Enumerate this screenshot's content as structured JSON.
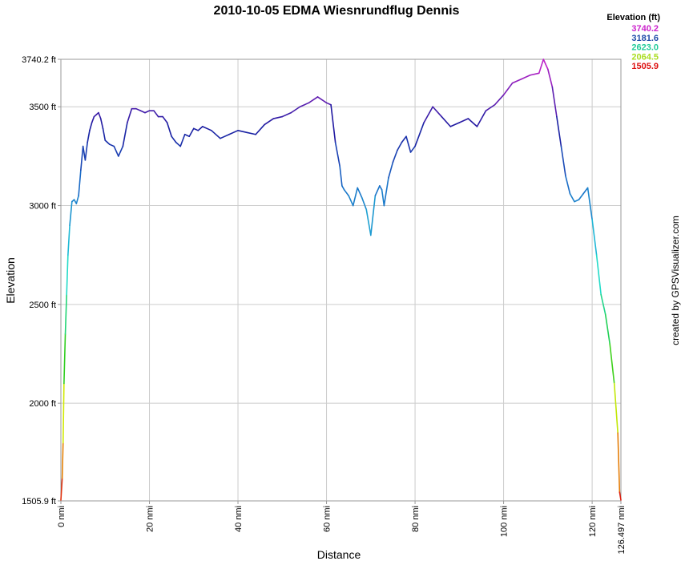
{
  "chart_data": {
    "type": "line",
    "title": "2010-10-05 EDMA Wiesnrundflug Dennis",
    "xlabel": "Distance",
    "ylabel": "Elevation",
    "credit": "created by GPSVisualizer.com",
    "grid": true,
    "xlim": [
      0,
      126.497
    ],
    "ylim": [
      1505.9,
      3740.2
    ],
    "x_ticks": [
      {
        "value": 0,
        "label": "0 nmi"
      },
      {
        "value": 20,
        "label": "20 nmi"
      },
      {
        "value": 40,
        "label": "40 nmi"
      },
      {
        "value": 60,
        "label": "60 nmi"
      },
      {
        "value": 80,
        "label": "80 nmi"
      },
      {
        "value": 100,
        "label": "100 nmi"
      },
      {
        "value": 120,
        "label": "120 nmi"
      },
      {
        "value": 126.497,
        "label": "126.497 nmi"
      }
    ],
    "y_ticks": [
      {
        "value": 1505.9,
        "label": "1505.9 ft"
      },
      {
        "value": 2000,
        "label": "2000 ft"
      },
      {
        "value": 2500,
        "label": "2500 ft"
      },
      {
        "value": 3000,
        "label": "3000 ft"
      },
      {
        "value": 3500,
        "label": "3500 ft"
      },
      {
        "value": 3740.2,
        "label": "3740.2 ft"
      }
    ],
    "legend": {
      "title": "Elevation (ft)",
      "placement": "top-right",
      "entries": [
        {
          "label": "3740.2",
          "color": "#cc22cc"
        },
        {
          "label": "3181.6",
          "color": "#1f4aa8"
        },
        {
          "label": "2623.0",
          "color": "#22cc99"
        },
        {
          "label": "2064.5",
          "color": "#aadd22"
        },
        {
          "label": "1505.9",
          "color": "#dd1111"
        }
      ]
    },
    "color_scale": [
      {
        "value": 1505.9,
        "color": "#dd1111"
      },
      {
        "value": 1900,
        "color": "#eeee00"
      },
      {
        "value": 2250,
        "color": "#22cc22"
      },
      {
        "value": 2700,
        "color": "#22dddd"
      },
      {
        "value": 3100,
        "color": "#1a6ec8"
      },
      {
        "value": 3400,
        "color": "#1a1aa0"
      },
      {
        "value": 3740.2,
        "color": "#cc22cc"
      }
    ],
    "series": [
      {
        "x": [
          0,
          0.3,
          0.5,
          0.7,
          1.0,
          1.3,
          1.6,
          2.0,
          2.5,
          3.0,
          3.5,
          4.0,
          4.5,
          5.0,
          5.5,
          6.0,
          6.5,
          7.0,
          7.5,
          8.0,
          8.5,
          9.0,
          9.5,
          10.0,
          10.5,
          11.0,
          12.0,
          13.0,
          14.0,
          15.0,
          16.0,
          17.0,
          18.0,
          19.0,
          20.0,
          21.0,
          22.0,
          23.0,
          24.0,
          25.0,
          26.0,
          27.0,
          28.0,
          29.0,
          30.0,
          31.0,
          32.0,
          34.0,
          36.0,
          38.0,
          40.0,
          42.0,
          44.0,
          46.0,
          48.0,
          50.0,
          52.0,
          54.0,
          56.0,
          58.0,
          60.0,
          61.0,
          62.0,
          63.0,
          63.5,
          64.0,
          65.0,
          66.0,
          67.0,
          68.0,
          69.0,
          70.0,
          71.0,
          72.0,
          72.5,
          73.0,
          74.0,
          75.0,
          76.0,
          77.0,
          78.0,
          79.0,
          80.0,
          82.0,
          84.0,
          86.0,
          88.0,
          90.0,
          92.0,
          94.0,
          96.0,
          98.0,
          100.0,
          102.0,
          104.0,
          106.0,
          108.0,
          109.0,
          110.0,
          111.0,
          112.0,
          113.0,
          114.0,
          115.0,
          116.0,
          117.0,
          118.0,
          119.0,
          120.0,
          121.0,
          122.0,
          123.0,
          124.0,
          125.0,
          125.8,
          126.2,
          126.497
        ],
        "y": [
          1510,
          1620,
          1800,
          2100,
          2350,
          2550,
          2750,
          2900,
          3020,
          3030,
          3010,
          3050,
          3180,
          3300,
          3230,
          3320,
          3380,
          3420,
          3450,
          3460,
          3470,
          3440,
          3390,
          3330,
          3320,
          3310,
          3300,
          3250,
          3300,
          3420,
          3490,
          3490,
          3480,
          3470,
          3480,
          3480,
          3450,
          3450,
          3420,
          3350,
          3320,
          3300,
          3360,
          3350,
          3390,
          3380,
          3400,
          3380,
          3340,
          3360,
          3380,
          3370,
          3360,
          3410,
          3440,
          3450,
          3470,
          3500,
          3520,
          3550,
          3520,
          3510,
          3320,
          3200,
          3100,
          3080,
          3050,
          3000,
          3090,
          3040,
          2980,
          2850,
          3050,
          3100,
          3080,
          3000,
          3140,
          3220,
          3280,
          3320,
          3350,
          3270,
          3300,
          3420,
          3500,
          3450,
          3400,
          3420,
          3440,
          3400,
          3480,
          3510,
          3560,
          3620,
          3640,
          3660,
          3670,
          3740,
          3690,
          3600,
          3450,
          3300,
          3150,
          3060,
          3020,
          3030,
          3060,
          3090,
          2930,
          2750,
          2550,
          2450,
          2300,
          2100,
          1850,
          1550,
          1510
        ]
      }
    ]
  }
}
